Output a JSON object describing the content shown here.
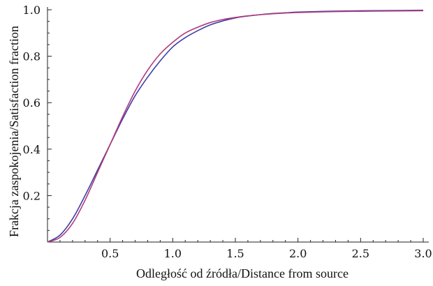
{
  "chart_data": {
    "type": "line",
    "xlabel": "Odległość od źródła/Distance from source",
    "ylabel": "Frakcja zaspokojenia/Satisfaction fraction",
    "xlim": [
      0,
      3.0
    ],
    "ylim": [
      0,
      1.0
    ],
    "x_ticks": [
      "0.5",
      "1.0",
      "1.5",
      "2.0",
      "2.5",
      "3.0"
    ],
    "y_ticks": [
      "0.2",
      "0.4",
      "0.6",
      "0.8",
      "1.0"
    ],
    "grid": false,
    "series": [
      {
        "color": "#3b3fa8",
        "x": [
          0,
          0.1,
          0.2,
          0.3,
          0.4,
          0.5,
          0.6,
          0.7,
          0.8,
          0.9,
          1.0,
          1.1,
          1.2,
          1.3,
          1.4,
          1.5,
          1.6,
          1.7,
          1.8,
          1.9,
          2.0,
          2.2,
          2.4,
          2.6,
          2.8,
          3.0
        ],
        "y": [
          0,
          0.03,
          0.1,
          0.2,
          0.31,
          0.42,
          0.53,
          0.63,
          0.71,
          0.78,
          0.84,
          0.88,
          0.91,
          0.935,
          0.952,
          0.965,
          0.973,
          0.979,
          0.984,
          0.987,
          0.99,
          0.993,
          0.995,
          0.996,
          0.997,
          0.998
        ]
      },
      {
        "color": "#b03a78",
        "x": [
          0,
          0.1,
          0.2,
          0.3,
          0.4,
          0.5,
          0.6,
          0.7,
          0.8,
          0.9,
          1.0,
          1.1,
          1.2,
          1.3,
          1.4,
          1.5,
          1.6,
          1.7,
          1.8,
          1.9,
          2.0,
          2.2,
          2.4,
          2.6,
          2.8,
          3.0
        ],
        "y": [
          0,
          0.02,
          0.08,
          0.18,
          0.3,
          0.42,
          0.54,
          0.65,
          0.74,
          0.81,
          0.86,
          0.9,
          0.925,
          0.945,
          0.958,
          0.967,
          0.974,
          0.979,
          0.983,
          0.986,
          0.988,
          0.991,
          0.993,
          0.994,
          0.995,
          0.996
        ]
      }
    ]
  }
}
